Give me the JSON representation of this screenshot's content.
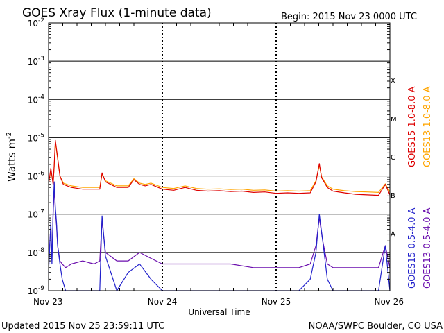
{
  "chart_data": {
    "type": "line",
    "title": "GOES Xray Flux (1-minute data)",
    "begin_label": "Begin:  2015 Nov 23 0000 UTC",
    "ylabel": "Watts m",
    "ylabel_sup": "-2",
    "xlabel": "Universal Time",
    "y_scale": "log",
    "ylim": [
      1e-09,
      0.01
    ],
    "xlim_days": [
      0,
      3
    ],
    "y_ticks": [
      {
        "base": "10",
        "exp": "-2",
        "value": 0.01
      },
      {
        "base": "10",
        "exp": "-3",
        "value": 0.001
      },
      {
        "base": "10",
        "exp": "-4",
        "value": 0.0001
      },
      {
        "base": "10",
        "exp": "-5",
        "value": 1e-05
      },
      {
        "base": "10",
        "exp": "-6",
        "value": 1e-06
      },
      {
        "base": "10",
        "exp": "-7",
        "value": 1e-07
      },
      {
        "base": "10",
        "exp": "-8",
        "value": 1e-08
      },
      {
        "base": "10",
        "exp": "-9",
        "value": 1e-09
      }
    ],
    "x_ticks": [
      {
        "label": "Nov 23",
        "day": 0
      },
      {
        "label": "Nov 24",
        "day": 1
      },
      {
        "label": "Nov 25",
        "day": 2
      },
      {
        "label": "Nov 26",
        "day": 3
      }
    ],
    "flare_classes": [
      {
        "label": "X",
        "value": 0.0001
      },
      {
        "label": "M",
        "value": 1e-05
      },
      {
        "label": "C",
        "value": 1e-06
      },
      {
        "label": "B",
        "value": 1e-07
      },
      {
        "label": "A",
        "value": 1e-08
      }
    ],
    "grid": true,
    "series": [
      {
        "name": "GOES15 1.0-8.0 A",
        "color": "#dd0000",
        "x_days": [
          0.0,
          0.02,
          0.04,
          0.05,
          0.06,
          0.08,
          0.1,
          0.13,
          0.2,
          0.3,
          0.4,
          0.45,
          0.47,
          0.5,
          0.6,
          0.7,
          0.75,
          0.8,
          0.85,
          0.9,
          1.0,
          1.1,
          1.2,
          1.3,
          1.4,
          1.5,
          1.6,
          1.7,
          1.8,
          1.9,
          2.0,
          2.1,
          2.2,
          2.3,
          2.35,
          2.38,
          2.4,
          2.45,
          2.5,
          2.6,
          2.7,
          2.8,
          2.9,
          2.96,
          3.0
        ],
        "values": [
          6e-07,
          1.6e-06,
          6e-07,
          2e-06,
          8.5e-06,
          3e-06,
          1e-06,
          6e-07,
          5e-07,
          4.5e-07,
          4.5e-07,
          4.5e-07,
          1.2e-06,
          7e-07,
          5e-07,
          5e-07,
          8e-07,
          6e-07,
          5.5e-07,
          6e-07,
          4.5e-07,
          4.2e-07,
          5e-07,
          4.2e-07,
          4e-07,
          4.1e-07,
          3.9e-07,
          4e-07,
          3.7e-07,
          3.8e-07,
          3.5e-07,
          3.6e-07,
          3.5e-07,
          3.6e-07,
          7e-07,
          2.1e-06,
          9e-07,
          5e-07,
          4e-07,
          3.6e-07,
          3.3e-07,
          3.2e-07,
          3.1e-07,
          6e-07,
          3.2e-07
        ]
      },
      {
        "name": "GOES13 1.0-8.0 A",
        "color": "#ffa500",
        "x_days": [
          0.0,
          0.02,
          0.04,
          0.05,
          0.06,
          0.08,
          0.1,
          0.13,
          0.2,
          0.3,
          0.4,
          0.45,
          0.47,
          0.5,
          0.6,
          0.7,
          0.75,
          0.8,
          0.85,
          0.9,
          1.0,
          1.1,
          1.2,
          1.3,
          1.4,
          1.5,
          1.6,
          1.7,
          1.8,
          1.9,
          2.0,
          2.1,
          2.2,
          2.3,
          2.35,
          2.38,
          2.4,
          2.45,
          2.5,
          2.6,
          2.7,
          2.8,
          2.9,
          2.96,
          3.0
        ],
        "values": [
          6.5e-07,
          1.4e-06,
          6.5e-07,
          1.8e-06,
          7.5e-06,
          2.8e-06,
          1e-06,
          6.5e-07,
          5.5e-07,
          5e-07,
          5e-07,
          5e-07,
          1.1e-06,
          7.5e-07,
          5.5e-07,
          5.5e-07,
          8.5e-07,
          6.5e-07,
          6e-07,
          6.5e-07,
          5e-07,
          4.7e-07,
          5.5e-07,
          4.7e-07,
          4.5e-07,
          4.6e-07,
          4.4e-07,
          4.5e-07,
          4.2e-07,
          4.3e-07,
          4e-07,
          4.1e-07,
          4e-07,
          4.1e-07,
          7.5e-07,
          1.9e-06,
          9.5e-07,
          5.5e-07,
          4.5e-07,
          4.1e-07,
          3.9e-07,
          3.8e-07,
          3.7e-07,
          6.2e-07,
          3.8e-07
        ]
      },
      {
        "name": "GOES15 0.5-4.0 A",
        "color": "#2222cc",
        "x_days": [
          0.0,
          0.02,
          0.03,
          0.04,
          0.05,
          0.06,
          0.07,
          0.08,
          0.1,
          0.12,
          0.15,
          0.2,
          0.3,
          0.4,
          0.45,
          0.47,
          0.5,
          0.6,
          0.7,
          0.8,
          0.9,
          1.0,
          1.2,
          1.4,
          1.6,
          1.8,
          2.0,
          2.2,
          2.3,
          2.35,
          2.38,
          2.41,
          2.45,
          2.5,
          2.7,
          2.9,
          2.96,
          3.0
        ],
        "values": [
          3e-09,
          6e-08,
          5e-09,
          1.2e-07,
          7e-07,
          1.5e-07,
          6e-08,
          1.5e-08,
          5e-09,
          2e-09,
          1e-09,
          1e-09,
          1e-09,
          1e-09,
          1e-09,
          9e-08,
          8e-09,
          1e-09,
          3e-09,
          5e-09,
          2e-09,
          1e-09,
          1e-09,
          1e-09,
          1e-09,
          1e-09,
          1e-09,
          1e-09,
          2e-09,
          1e-08,
          1e-07,
          2e-08,
          2e-09,
          1e-09,
          1e-09,
          1e-09,
          1.5e-08,
          1e-09
        ]
      },
      {
        "name": "GOES13 0.5-4.0 A",
        "color": "#6a0dad",
        "x_days": [
          0.0,
          0.02,
          0.03,
          0.04,
          0.05,
          0.06,
          0.07,
          0.08,
          0.1,
          0.12,
          0.15,
          0.2,
          0.3,
          0.4,
          0.45,
          0.47,
          0.5,
          0.6,
          0.7,
          0.8,
          0.9,
          1.0,
          1.2,
          1.4,
          1.6,
          1.8,
          2.0,
          2.2,
          2.3,
          2.35,
          2.38,
          2.41,
          2.45,
          2.5,
          2.7,
          2.9,
          2.96,
          3.0
        ],
        "values": [
          5e-09,
          5e-08,
          6e-09,
          1e-07,
          5e-07,
          1.2e-07,
          5e-08,
          1.5e-08,
          6e-09,
          5e-09,
          4e-09,
          5e-09,
          6e-09,
          5e-09,
          6e-09,
          7e-08,
          1e-08,
          6e-09,
          6e-09,
          1e-08,
          7e-09,
          5e-09,
          5e-09,
          5e-09,
          5e-09,
          4e-09,
          4e-09,
          4e-09,
          5e-09,
          1.5e-08,
          8e-08,
          2e-08,
          5e-09,
          4e-09,
          4e-09,
          4e-09,
          1.5e-08,
          4e-09
        ]
      }
    ]
  },
  "footer": {
    "updated": "Updated 2015 Nov 25 23:59:11 UTC",
    "credit": "NOAA/SWPC Boulder, CO USA"
  }
}
